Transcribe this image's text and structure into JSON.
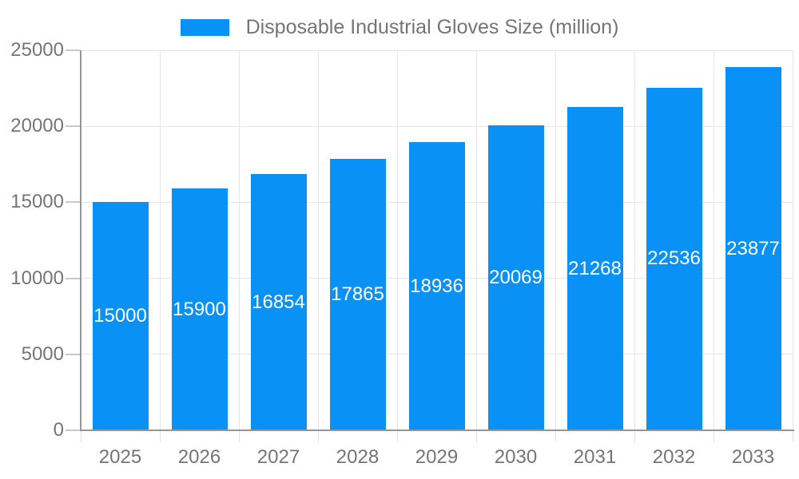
{
  "legend": {
    "label": "Disposable Industrial Gloves Size (million)"
  },
  "chart_data": {
    "type": "bar",
    "title": "Disposable Industrial Gloves Size (million)",
    "categories": [
      "2025",
      "2026",
      "2027",
      "2028",
      "2029",
      "2030",
      "2031",
      "2032",
      "2033"
    ],
    "values": [
      15000,
      15900,
      16854,
      17865,
      18936,
      20069,
      21268,
      22536,
      23877
    ],
    "value_labels": [
      "15000",
      "15900",
      "16854",
      "17865",
      "18936",
      "20069",
      "21268",
      "22536",
      "23877"
    ],
    "xlabel": "",
    "ylabel": "",
    "ylim": [
      0,
      25000
    ],
    "yticks": [
      0,
      5000,
      10000,
      15000,
      20000,
      25000
    ],
    "ytick_labels": [
      "0",
      "5000",
      "10000",
      "15000",
      "20000",
      "25000"
    ],
    "grid": "on",
    "legend_position": "top-center",
    "value_label_position": "inside-center"
  },
  "colors": {
    "bar": "#0991f5",
    "bar_value_label": "#ffffff",
    "gridline": "#e6e6e6",
    "axis_line": "#959595",
    "y_tick": "#c9c9c9",
    "x_tick": "#e0e0e0",
    "axis_label": "#757575",
    "background": "#ffffff"
  }
}
